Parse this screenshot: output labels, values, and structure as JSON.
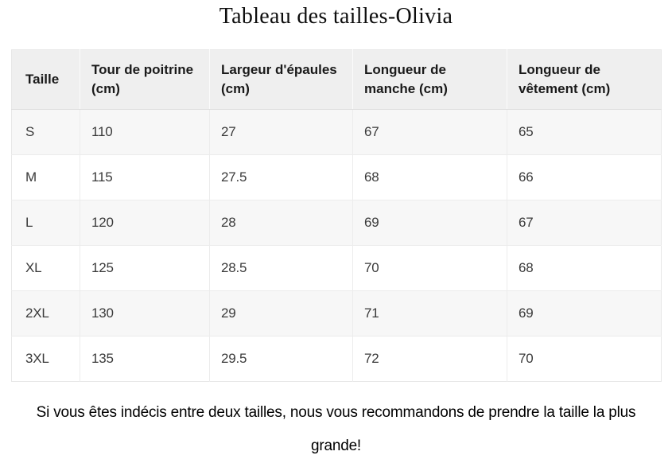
{
  "page": {
    "title": "Tableau des tailles-Olivia",
    "note": "Si vous êtes indécis entre deux tailles, nous vous recommandons de prendre la taille la plus grande!"
  },
  "size_table": {
    "columns": [
      "Taille",
      "Tour de poitrine (cm)",
      "Largeur d'épaules (cm)",
      "Longueur de manche (cm)",
      "Longueur de vêtement (cm)"
    ],
    "rows": [
      [
        "S",
        "110",
        "27",
        "67",
        "65"
      ],
      [
        "M",
        "115",
        "27.5",
        "68",
        "66"
      ],
      [
        "L",
        "120",
        "28",
        "69",
        "67"
      ],
      [
        "XL",
        "125",
        "28.5",
        "70",
        "68"
      ],
      [
        "2XL",
        "130",
        "29",
        "71",
        "69"
      ],
      [
        "3XL",
        "135",
        "29.5",
        "72",
        "70"
      ]
    ]
  },
  "colors": {
    "header_background": "#efefef",
    "alternate_row_background": "#f7f7f7",
    "border": "#ececec",
    "header_text": "#1a1a1a",
    "body_text": "#3a3a3a"
  }
}
